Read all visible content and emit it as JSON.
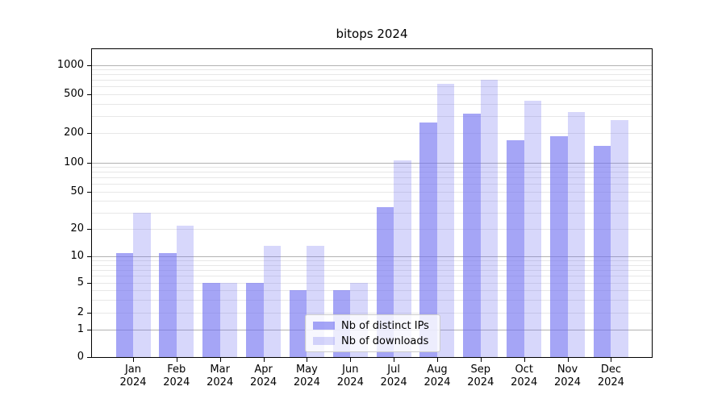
{
  "chart_data": {
    "type": "bar",
    "title": "bitops 2024",
    "scale": "symlog",
    "grid": "horizontal major+minor",
    "legend_position": "lower center-right inside plot",
    "categories": [
      {
        "month": "Jan",
        "year": "2024"
      },
      {
        "month": "Feb",
        "year": "2024"
      },
      {
        "month": "Mar",
        "year": "2024"
      },
      {
        "month": "Apr",
        "year": "2024"
      },
      {
        "month": "May",
        "year": "2024"
      },
      {
        "month": "Jun",
        "year": "2024"
      },
      {
        "month": "Jul",
        "year": "2024"
      },
      {
        "month": "Aug",
        "year": "2024"
      },
      {
        "month": "Sep",
        "year": "2024"
      },
      {
        "month": "Oct",
        "year": "2024"
      },
      {
        "month": "Nov",
        "year": "2024"
      },
      {
        "month": "Dec",
        "year": "2024"
      }
    ],
    "series": [
      {
        "name": "Nb of distinct IPs",
        "color": "rgba(110,110,240,0.62)",
        "values": [
          11,
          11,
          5,
          5,
          4,
          4,
          34,
          255,
          315,
          167,
          184,
          148
        ]
      },
      {
        "name": "Nb of downloads",
        "color": "rgba(110,110,240,0.28)",
        "values": [
          30,
          22,
          5,
          13,
          13,
          5,
          105,
          645,
          710,
          425,
          330,
          270
        ]
      }
    ],
    "yticks": [
      0,
      1,
      2,
      5,
      10,
      20,
      50,
      100,
      200,
      500,
      1000
    ],
    "ylim": [
      0,
      1500
    ],
    "xlabel": "",
    "ylabel": ""
  },
  "colors": {
    "bar_base": "#6e6ef0",
    "major_grid": "#b2b2b2",
    "minor_grid": "#e7e7e7",
    "spine": "#000000",
    "legend_border": "#cccccc"
  }
}
